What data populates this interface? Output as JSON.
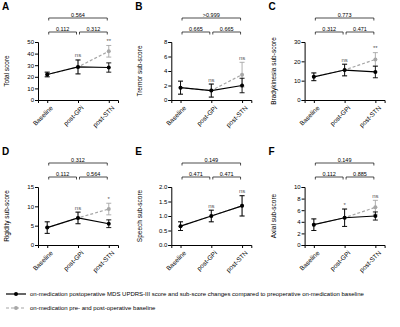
{
  "chart_data": [
    {
      "type": "line",
      "title": "A",
      "ylabel": "Total score",
      "legend": "bottom",
      "categories": [
        "Baseline",
        "post-GPi",
        "post-STN"
      ],
      "ylim": [
        0,
        50
      ],
      "yticks": [
        0,
        10,
        20,
        30,
        40,
        50
      ],
      "series": [
        {
          "name": "on-medication postoperative MDS UPDRS-III score and sub-score changes compared to preoperative on-medication baseline",
          "color": "#000000",
          "line_style": "solid",
          "marker": "circle",
          "values": [
            22,
            28.5,
            28
          ],
          "errors": [
            2,
            6,
            4
          ]
        },
        {
          "name": "on-medication pre- and post-operative baseline",
          "color": "#a6a6a6",
          "line_style": "dashed",
          "marker": "circle",
          "values": [
            22,
            28.5,
            42
          ],
          "errors": [
            2,
            6,
            5
          ]
        }
      ],
      "annotations": [
        {
          "text": "ns",
          "x": "post-GPi"
        },
        {
          "text": "**",
          "x": "post-STN"
        }
      ],
      "comparisons": [
        {
          "from": "Baseline",
          "to": "post-GPi",
          "label": "0.112"
        },
        {
          "from": "post-GPi",
          "to": "post-STN",
          "label": "0.312"
        },
        {
          "from": "Baseline",
          "to": "post-STN",
          "label": "0.564"
        }
      ]
    },
    {
      "type": "line",
      "title": "B",
      "ylabel": "Tremor sub-score",
      "categories": [
        "Baseline",
        "post-GPi",
        "post-STN"
      ],
      "ylim": [
        0,
        8
      ],
      "yticks": [
        0,
        2,
        4,
        6,
        8
      ],
      "series": [
        {
          "color": "#000000",
          "line_style": "solid",
          "marker": "circle",
          "values": [
            1.7,
            1.3,
            2.0
          ],
          "errors": [
            0.9,
            0.9,
            1.0
          ]
        },
        {
          "color": "#a6a6a6",
          "line_style": "dashed",
          "marker": "circle",
          "values": [
            1.7,
            1.3,
            3.5
          ],
          "errors": [
            0.9,
            0.9,
            1.7
          ]
        }
      ],
      "annotations": [
        {
          "text": "ns",
          "x": "post-GPi"
        },
        {
          "text": "ns",
          "x": "post-STN"
        }
      ],
      "comparisons": [
        {
          "from": "Baseline",
          "to": "post-GPi",
          "label": "0.665"
        },
        {
          "from": "post-GPi",
          "to": "post-STN",
          "label": "0.665"
        },
        {
          "from": "Baseline",
          "to": "post-STN",
          "label": ">0.999"
        }
      ]
    },
    {
      "type": "line",
      "title": "C",
      "ylabel": "Bradykinesia sub-score",
      "categories": [
        "Baseline",
        "post-GPi",
        "post-STN"
      ],
      "ylim": [
        0,
        30
      ],
      "yticks": [
        0,
        10,
        20,
        30
      ],
      "series": [
        {
          "color": "#000000",
          "line_style": "solid",
          "marker": "circle",
          "values": [
            12,
            15.5,
            14.5
          ],
          "errors": [
            2,
            3,
            3
          ]
        },
        {
          "color": "#a6a6a6",
          "line_style": "dashed",
          "marker": "circle",
          "values": [
            12,
            15.5,
            21
          ],
          "errors": [
            2,
            3,
            3.5
          ]
        }
      ],
      "annotations": [
        {
          "text": "ns",
          "x": "post-GPi"
        },
        {
          "text": "**",
          "x": "post-STN"
        }
      ],
      "comparisons": [
        {
          "from": "Baseline",
          "to": "post-GPi",
          "label": "0.312"
        },
        {
          "from": "post-GPi",
          "to": "post-STN",
          "label": "0.471"
        },
        {
          "from": "Baseline",
          "to": "post-STN",
          "label": "0.773"
        }
      ]
    },
    {
      "type": "line",
      "title": "D",
      "ylabel": "Rigidity sub-score",
      "categories": [
        "Baseline",
        "post-GPi",
        "post-STN"
      ],
      "ylim": [
        0,
        15
      ],
      "yticks": [
        0,
        5,
        10,
        15
      ],
      "series": [
        {
          "color": "#000000",
          "line_style": "solid",
          "marker": "circle",
          "values": [
            4.5,
            7,
            5.5
          ],
          "errors": [
            1.5,
            1.5,
            1
          ]
        },
        {
          "color": "#a6a6a6",
          "line_style": "dashed",
          "marker": "circle",
          "values": [
            4.5,
            7,
            9.3
          ],
          "errors": [
            1.5,
            1.5,
            1.5
          ]
        }
      ],
      "annotations": [
        {
          "text": "ns",
          "x": "post-GPi"
        },
        {
          "text": "*",
          "x": "post-STN"
        }
      ],
      "comparisons": [
        {
          "from": "Baseline",
          "to": "post-GPi",
          "label": "0.112"
        },
        {
          "from": "post-GPi",
          "to": "post-STN",
          "label": "0.564"
        },
        {
          "from": "Baseline",
          "to": "post-STN",
          "label": "0.312"
        }
      ]
    },
    {
      "type": "line",
      "title": "E",
      "ylabel": "Speech sub-score",
      "categories": [
        "Baseline",
        "post-GPi",
        "post-STN"
      ],
      "ylim": [
        0,
        2
      ],
      "yticks": [
        {
          "value": 0,
          "label": "0.0"
        },
        {
          "value": 0.5,
          "label": "0.5"
        },
        {
          "value": 1,
          "label": "1.0"
        },
        {
          "value": 1.5,
          "label": "1.5"
        },
        {
          "value": 2,
          "label": "2.0"
        }
      ],
      "series": [
        {
          "color": "#000000",
          "line_style": "solid",
          "marker": "circle",
          "values": [
            0.65,
            1.0,
            1.35
          ],
          "errors": [
            0.15,
            0.2,
            0.35
          ]
        },
        {
          "color": "#a6a6a6",
          "line_style": "dashed",
          "marker": "circle",
          "values": [
            0.65,
            1.0,
            1.35
          ],
          "errors": [
            0.15,
            0.2,
            0.35
          ]
        }
      ],
      "annotations": [
        {
          "text": "ns",
          "x": "post-GPi"
        },
        {
          "text": "ns",
          "x": "post-STN"
        }
      ],
      "comparisons": [
        {
          "from": "Baseline",
          "to": "post-GPi",
          "label": "0.471"
        },
        {
          "from": "post-GPi",
          "to": "post-STN",
          "label": "0.471"
        },
        {
          "from": "Baseline",
          "to": "post-STN",
          "label": "0.149"
        }
      ]
    },
    {
      "type": "line",
      "title": "F",
      "ylabel": "Axial sub-score",
      "categories": [
        "Baseline",
        "post-GPi",
        "post-STN"
      ],
      "ylim": [
        0,
        10
      ],
      "yticks": [
        0,
        2,
        4,
        6,
        8,
        10
      ],
      "series": [
        {
          "color": "#000000",
          "line_style": "solid",
          "marker": "circle",
          "values": [
            3.5,
            4.7,
            5.0
          ],
          "errors": [
            1,
            1.5,
            0.7
          ]
        },
        {
          "color": "#a6a6a6",
          "line_style": "dashed",
          "marker": "circle",
          "values": [
            3.5,
            4.7,
            6.5
          ],
          "errors": [
            1,
            1.5,
            1.2
          ]
        }
      ],
      "annotations": [
        {
          "text": "*",
          "x": "post-GPi"
        },
        {
          "text": "ns",
          "x": "post-STN"
        }
      ],
      "comparisons": [
        {
          "from": "Baseline",
          "to": "post-GPi",
          "label": "0.112"
        },
        {
          "from": "post-GPi",
          "to": "post-STN",
          "label": "0.885"
        },
        {
          "from": "Baseline",
          "to": "post-STN",
          "label": "0.149"
        }
      ]
    }
  ]
}
